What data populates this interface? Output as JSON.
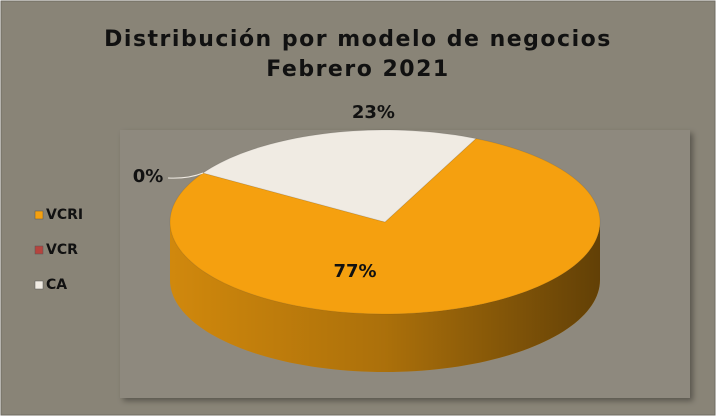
{
  "chart_data": {
    "type": "pie",
    "title": "Distribución por modelo de negocios",
    "subtitle": "Febrero 2021",
    "categories": [
      "VCRI",
      "VCR",
      "CA"
    ],
    "values": [
      77,
      0,
      23
    ],
    "value_labels": [
      "77%",
      "0%",
      "23%"
    ],
    "colors": [
      "#f5a00f",
      "#b5443e",
      "#f0ebe3"
    ],
    "legend": "left"
  }
}
